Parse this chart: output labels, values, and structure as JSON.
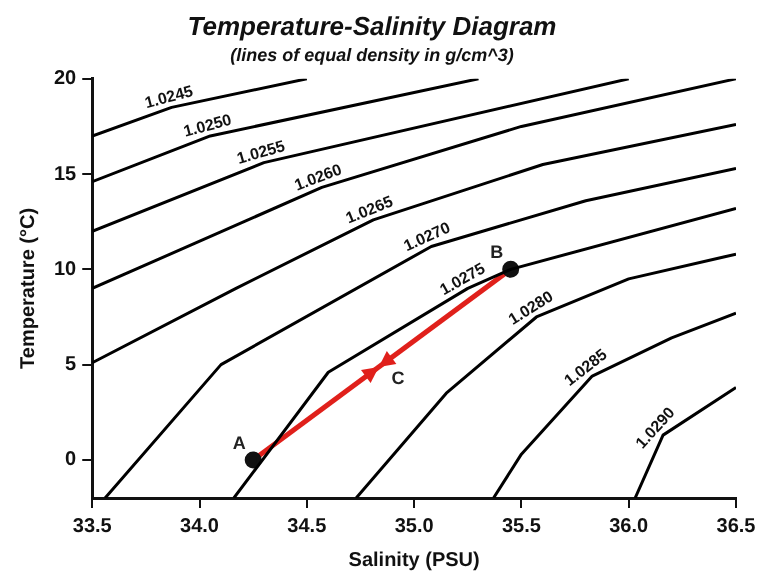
{
  "chart_data": {
    "type": "line",
    "title": "Temperature-Salinity Diagram",
    "subtitle": "(lines of equal density in g/cm^3)",
    "xlabel": "Salinity (PSU)",
    "ylabel": "Temperature (°C)",
    "xlim": [
      33.5,
      36.5
    ],
    "xticks": [
      33.5,
      {
        "value": 34,
        "label": "34.0"
      },
      34.5,
      {
        "value": 35,
        "label": "35.0"
      },
      35.5,
      {
        "value": 36,
        "label": "36.0"
      },
      36.5
    ],
    "ylim": [
      -2,
      20
    ],
    "yticks": [
      0,
      5,
      10,
      15,
      20
    ],
    "grid": false,
    "legend": false,
    "marker": "none",
    "line_style": "solid",
    "series": [
      {
        "name": "1.0245",
        "color": "#000000",
        "x": [
          33.5,
          33.87,
          34.5
        ],
        "values": [
          17.0,
          18.5,
          20
        ]
      },
      {
        "name": "1.0250",
        "color": "#000000",
        "x": [
          33.5,
          34.05,
          35.3
        ],
        "values": [
          14.6,
          17.0,
          20
        ]
      },
      {
        "name": "1.0255",
        "color": "#000000",
        "x": [
          33.5,
          34.3,
          36.0
        ],
        "values": [
          12.0,
          15.6,
          20
        ]
      },
      {
        "name": "1.0260",
        "color": "#000000",
        "x": [
          33.5,
          34.57,
          35.5,
          36.5
        ],
        "values": [
          9.0,
          14.3,
          17.5,
          20
        ]
      },
      {
        "name": "1.0265",
        "color": "#000000",
        "x": [
          33.5,
          34.17,
          34.81,
          35.6,
          36.5
        ],
        "values": [
          5.1,
          9.0,
          12.6,
          15.5,
          17.6
        ]
      },
      {
        "name": "1.0270",
        "color": "#000000",
        "x": [
          33.56,
          34.1,
          35.08,
          35.8,
          36.5
        ],
        "values": [
          -2,
          5,
          11.2,
          13.6,
          15.3
        ]
      },
      {
        "name": "1.0275",
        "color": "#000000",
        "x": [
          34.16,
          34.6,
          35.25,
          35.45,
          36.5
        ],
        "values": [
          -2,
          4.6,
          9.0,
          10,
          13.2
        ]
      },
      {
        "name": "1.0280",
        "color": "#000000",
        "x": [
          34.73,
          35.15,
          35.57,
          36.0,
          36.5
        ],
        "values": [
          -2,
          3.5,
          7.5,
          9.5,
          10.8
        ]
      },
      {
        "name": "1.0285",
        "color": "#000000",
        "x": [
          35.37,
          35.5,
          35.83,
          36.2,
          36.5
        ],
        "values": [
          -2,
          0.3,
          4.4,
          6.4,
          7.7
        ]
      },
      {
        "name": "1.0290",
        "color": "#000000",
        "x": [
          36.03,
          36.16,
          36.5
        ],
        "values": [
          -2,
          1.3,
          3.8
        ]
      },
      {
        "color": "#e0201b",
        "marker": "circle",
        "x": [
          34.25,
          35.45
        ],
        "values": [
          0,
          10
        ]
      }
    ],
    "annotations": [
      {
        "text": "A",
        "x": 34.25,
        "y": 0
      },
      {
        "text": "B",
        "x": 35.45,
        "y": 10
      },
      {
        "text": "C",
        "x": 34.85,
        "y": 5
      }
    ]
  }
}
